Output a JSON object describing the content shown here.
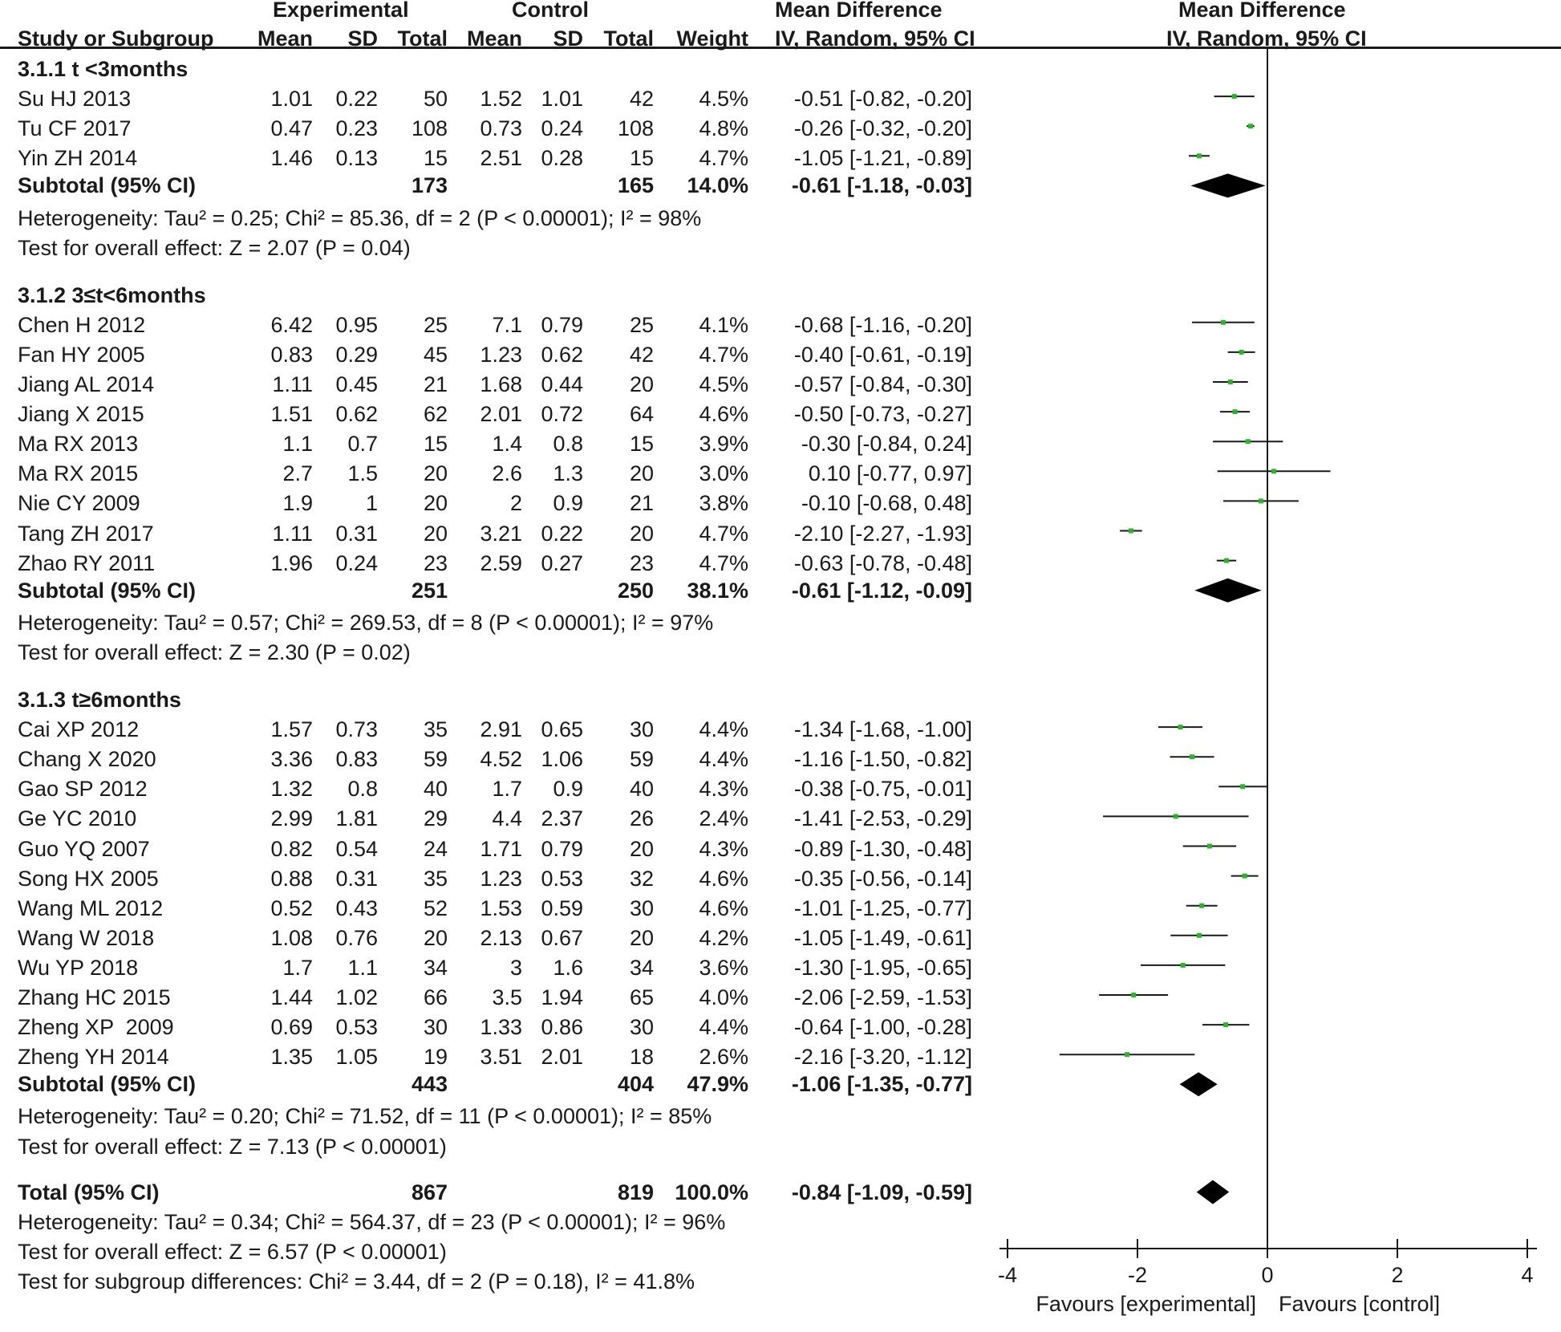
{
  "headers": {
    "group_experimental": "Experimental",
    "group_control": "Control",
    "group_md_text": "Mean Difference",
    "group_md_plot": "Mean Difference",
    "study": "Study or Subgroup",
    "mean": "Mean",
    "sd": "SD",
    "total": "Total",
    "weight": "Weight",
    "method_text": "IV, Random, 95% CI",
    "method_plot": "IV, Random, 95% CI"
  },
  "subgroups": [
    {
      "title": "3.1.1 t <3months",
      "studies": [
        {
          "name": "Su HJ 2013",
          "e_mean": "1.01",
          "e_sd": "0.22",
          "e_total": "50",
          "c_mean": "1.52",
          "c_sd": "1.01",
          "c_total": "42",
          "weight": "4.5%",
          "ci_text": "-0.51 [-0.82, -0.20]",
          "md": -0.51,
          "lo": -0.82,
          "hi": -0.2
        },
        {
          "name": "Tu CF 2017",
          "e_mean": "0.47",
          "e_sd": "0.23",
          "e_total": "108",
          "c_mean": "0.73",
          "c_sd": "0.24",
          "c_total": "108",
          "weight": "4.8%",
          "ci_text": "-0.26 [-0.32, -0.20]",
          "md": -0.26,
          "lo": -0.32,
          "hi": -0.2
        },
        {
          "name": "Yin ZH 2014",
          "e_mean": "1.46",
          "e_sd": "0.13",
          "e_total": "15",
          "c_mean": "2.51",
          "c_sd": "0.28",
          "c_total": "15",
          "weight": "4.7%",
          "ci_text": "-1.05 [-1.21, -0.89]",
          "md": -1.05,
          "lo": -1.21,
          "hi": -0.89
        }
      ],
      "subtotal": {
        "label": "Subtotal (95% CI)",
        "e_total": "173",
        "c_total": "165",
        "weight": "14.0%",
        "ci_text": "-0.61 [-1.18, -0.03]",
        "md": -0.61,
        "lo": -1.18,
        "hi": -0.03
      },
      "heterogeneity": "Heterogeneity: Tau² = 0.25; Chi² = 85.36, df = 2 (P < 0.00001); I² = 98%",
      "overall": "Test for overall effect: Z = 2.07 (P = 0.04)"
    },
    {
      "title": "3.1.2 3≤t<6months",
      "studies": [
        {
          "name": "Chen H 2012",
          "e_mean": "6.42",
          "e_sd": "0.95",
          "e_total": "25",
          "c_mean": "7.1",
          "c_sd": "0.79",
          "c_total": "25",
          "weight": "4.1%",
          "ci_text": "-0.68 [-1.16, -0.20]",
          "md": -0.68,
          "lo": -1.16,
          "hi": -0.2
        },
        {
          "name": "Fan HY 2005",
          "e_mean": "0.83",
          "e_sd": "0.29",
          "e_total": "45",
          "c_mean": "1.23",
          "c_sd": "0.62",
          "c_total": "42",
          "weight": "4.7%",
          "ci_text": "-0.40 [-0.61, -0.19]",
          "md": -0.4,
          "lo": -0.61,
          "hi": -0.19
        },
        {
          "name": "Jiang AL 2014",
          "e_mean": "1.11",
          "e_sd": "0.45",
          "e_total": "21",
          "c_mean": "1.68",
          "c_sd": "0.44",
          "c_total": "20",
          "weight": "4.5%",
          "ci_text": "-0.57 [-0.84, -0.30]",
          "md": -0.57,
          "lo": -0.84,
          "hi": -0.3
        },
        {
          "name": "Jiang X 2015",
          "e_mean": "1.51",
          "e_sd": "0.62",
          "e_total": "62",
          "c_mean": "2.01",
          "c_sd": "0.72",
          "c_total": "64",
          "weight": "4.6%",
          "ci_text": "-0.50 [-0.73, -0.27]",
          "md": -0.5,
          "lo": -0.73,
          "hi": -0.27
        },
        {
          "name": "Ma RX 2013",
          "e_mean": "1.1",
          "e_sd": "0.7",
          "e_total": "15",
          "c_mean": "1.4",
          "c_sd": "0.8",
          "c_total": "15",
          "weight": "3.9%",
          "ci_text": "-0.30 [-0.84, 0.24]",
          "md": -0.3,
          "lo": -0.84,
          "hi": 0.24
        },
        {
          "name": "Ma RX 2015",
          "e_mean": "2.7",
          "e_sd": "1.5",
          "e_total": "20",
          "c_mean": "2.6",
          "c_sd": "1.3",
          "c_total": "20",
          "weight": "3.0%",
          "ci_text": "0.10 [-0.77, 0.97]",
          "md": 0.1,
          "lo": -0.77,
          "hi": 0.97
        },
        {
          "name": "Nie CY 2009",
          "e_mean": "1.9",
          "e_sd": "1",
          "e_total": "20",
          "c_mean": "2",
          "c_sd": "0.9",
          "c_total": "21",
          "weight": "3.8%",
          "ci_text": "-0.10 [-0.68, 0.48]",
          "md": -0.1,
          "lo": -0.68,
          "hi": 0.48
        },
        {
          "name": "Tang ZH 2017",
          "e_mean": "1.11",
          "e_sd": "0.31",
          "e_total": "20",
          "c_mean": "3.21",
          "c_sd": "0.22",
          "c_total": "20",
          "weight": "4.7%",
          "ci_text": "-2.10 [-2.27, -1.93]",
          "md": -2.1,
          "lo": -2.27,
          "hi": -1.93
        },
        {
          "name": "Zhao RY 2011",
          "e_mean": "1.96",
          "e_sd": "0.24",
          "e_total": "23",
          "c_mean": "2.59",
          "c_sd": "0.27",
          "c_total": "23",
          "weight": "4.7%",
          "ci_text": "-0.63 [-0.78, -0.48]",
          "md": -0.63,
          "lo": -0.78,
          "hi": -0.48
        }
      ],
      "subtotal": {
        "label": "Subtotal (95% CI)",
        "e_total": "251",
        "c_total": "250",
        "weight": "38.1%",
        "ci_text": "-0.61 [-1.12, -0.09]",
        "md": -0.61,
        "lo": -1.12,
        "hi": -0.09
      },
      "heterogeneity": "Heterogeneity: Tau² = 0.57; Chi² = 269.53, df = 8 (P < 0.00001); I² = 97%",
      "overall": "Test for overall effect: Z = 2.30 (P = 0.02)"
    },
    {
      "title": "3.1.3 t≥6months",
      "studies": [
        {
          "name": "Cai XP 2012",
          "e_mean": "1.57",
          "e_sd": "0.73",
          "e_total": "35",
          "c_mean": "2.91",
          "c_sd": "0.65",
          "c_total": "30",
          "weight": "4.4%",
          "ci_text": "-1.34 [-1.68, -1.00]",
          "md": -1.34,
          "lo": -1.68,
          "hi": -1.0
        },
        {
          "name": "Chang X 2020",
          "e_mean": "3.36",
          "e_sd": "0.83",
          "e_total": "59",
          "c_mean": "4.52",
          "c_sd": "1.06",
          "c_total": "59",
          "weight": "4.4%",
          "ci_text": "-1.16 [-1.50, -0.82]",
          "md": -1.16,
          "lo": -1.5,
          "hi": -0.82
        },
        {
          "name": "Gao SP 2012",
          "e_mean": "1.32",
          "e_sd": "0.8",
          "e_total": "40",
          "c_mean": "1.7",
          "c_sd": "0.9",
          "c_total": "40",
          "weight": "4.3%",
          "ci_text": "-0.38 [-0.75, -0.01]",
          "md": -0.38,
          "lo": -0.75,
          "hi": -0.01
        },
        {
          "name": "Ge YC 2010",
          "e_mean": "2.99",
          "e_sd": "1.81",
          "e_total": "29",
          "c_mean": "4.4",
          "c_sd": "2.37",
          "c_total": "26",
          "weight": "2.4%",
          "ci_text": "-1.41 [-2.53, -0.29]",
          "md": -1.41,
          "lo": -2.53,
          "hi": -0.29
        },
        {
          "name": "Guo YQ 2007",
          "e_mean": "0.82",
          "e_sd": "0.54",
          "e_total": "24",
          "c_mean": "1.71",
          "c_sd": "0.79",
          "c_total": "20",
          "weight": "4.3%",
          "ci_text": "-0.89 [-1.30, -0.48]",
          "md": -0.89,
          "lo": -1.3,
          "hi": -0.48
        },
        {
          "name": "Song HX 2005",
          "e_mean": "0.88",
          "e_sd": "0.31",
          "e_total": "35",
          "c_mean": "1.23",
          "c_sd": "0.53",
          "c_total": "32",
          "weight": "4.6%",
          "ci_text": "-0.35 [-0.56, -0.14]",
          "md": -0.35,
          "lo": -0.56,
          "hi": -0.14
        },
        {
          "name": "Wang ML 2012",
          "e_mean": "0.52",
          "e_sd": "0.43",
          "e_total": "52",
          "c_mean": "1.53",
          "c_sd": "0.59",
          "c_total": "30",
          "weight": "4.6%",
          "ci_text": "-1.01 [-1.25, -0.77]",
          "md": -1.01,
          "lo": -1.25,
          "hi": -0.77
        },
        {
          "name": "Wang W 2018",
          "e_mean": "1.08",
          "e_sd": "0.76",
          "e_total": "20",
          "c_mean": "2.13",
          "c_sd": "0.67",
          "c_total": "20",
          "weight": "4.2%",
          "ci_text": "-1.05 [-1.49, -0.61]",
          "md": -1.05,
          "lo": -1.49,
          "hi": -0.61
        },
        {
          "name": "Wu YP 2018",
          "e_mean": "1.7",
          "e_sd": "1.1",
          "e_total": "34",
          "c_mean": "3",
          "c_sd": "1.6",
          "c_total": "34",
          "weight": "3.6%",
          "ci_text": "-1.30 [-1.95, -0.65]",
          "md": -1.3,
          "lo": -1.95,
          "hi": -0.65
        },
        {
          "name": "Zhang HC 2015",
          "e_mean": "1.44",
          "e_sd": "1.02",
          "e_total": "66",
          "c_mean": "3.5",
          "c_sd": "1.94",
          "c_total": "65",
          "weight": "4.0%",
          "ci_text": "-2.06 [-2.59, -1.53]",
          "md": -2.06,
          "lo": -2.59,
          "hi": -1.53
        },
        {
          "name": "Zheng XP  2009",
          "e_mean": "0.69",
          "e_sd": "0.53",
          "e_total": "30",
          "c_mean": "1.33",
          "c_sd": "0.86",
          "c_total": "30",
          "weight": "4.4%",
          "ci_text": "-0.64 [-1.00, -0.28]",
          "md": -0.64,
          "lo": -1.0,
          "hi": -0.28
        },
        {
          "name": "Zheng YH 2014",
          "e_mean": "1.35",
          "e_sd": "1.05",
          "e_total": "19",
          "c_mean": "3.51",
          "c_sd": "2.01",
          "c_total": "18",
          "weight": "2.6%",
          "ci_text": "-2.16 [-3.20, -1.12]",
          "md": -2.16,
          "lo": -3.2,
          "hi": -1.12
        }
      ],
      "subtotal": {
        "label": "Subtotal (95% CI)",
        "e_total": "443",
        "c_total": "404",
        "weight": "47.9%",
        "ci_text": "-1.06 [-1.35, -0.77]",
        "md": -1.06,
        "lo": -1.35,
        "hi": -0.77
      },
      "heterogeneity": "Heterogeneity: Tau² = 0.20; Chi² = 71.52, df = 11 (P < 0.00001); I² = 85%",
      "overall": "Test for overall effect: Z = 7.13 (P < 0.00001)"
    }
  ],
  "total": {
    "label": "Total (95% CI)",
    "e_total": "867",
    "c_total": "819",
    "weight": "100.0%",
    "ci_text": "-0.84 [-1.09, -0.59]",
    "md": -0.84,
    "lo": -1.09,
    "hi": -0.59,
    "heterogeneity": "Heterogeneity: Tau² = 0.34; Chi² = 564.37, df = 23 (P < 0.00001); I² = 96%",
    "overall": "Test for overall effect: Z = 6.57 (P < 0.00001)",
    "subgroup_diff": "Test for subgroup differences: Chi² = 3.44, df = 2 (P = 0.18), I² = 41.8%"
  },
  "chart_data": {
    "type": "forest",
    "title": "Mean Difference IV, Random, 95% CI",
    "xlim": [
      -4,
      4
    ],
    "xticks": [
      "-4",
      "-2",
      "0",
      "2",
      "4"
    ],
    "xtick_values": [
      -4,
      -2,
      0,
      2,
      4
    ],
    "favours_left": "Favours [experimental]",
    "favours_right": "Favours [control]",
    "point_color": "#2bb52b",
    "line_color": "#1a1a1a"
  }
}
